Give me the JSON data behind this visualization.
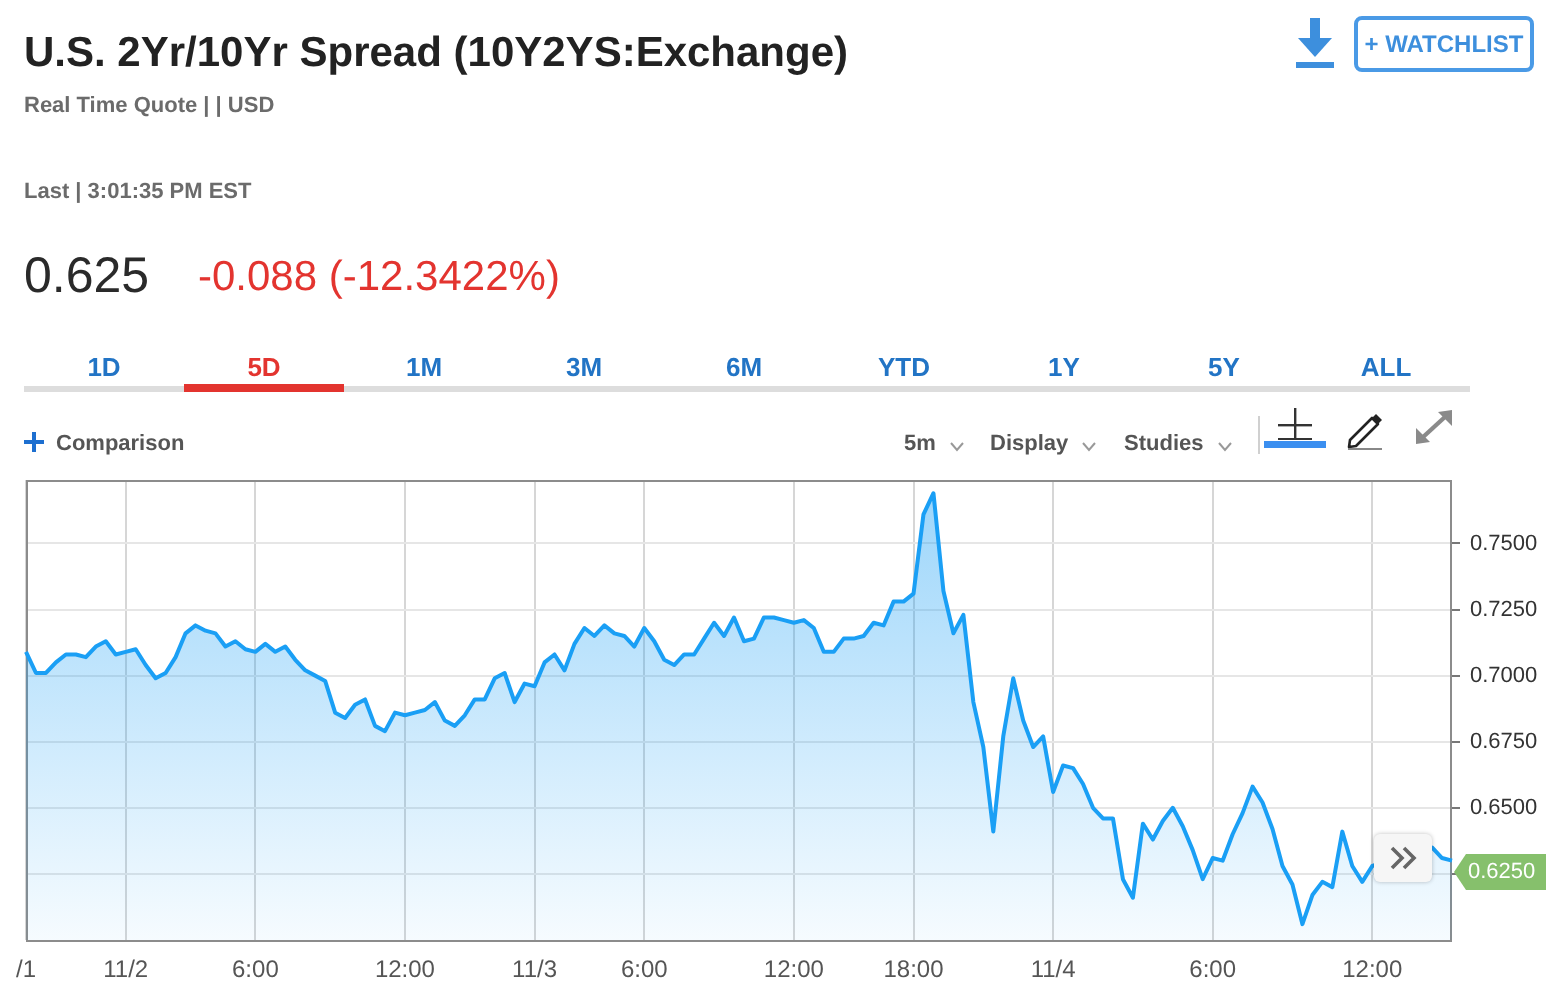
{
  "chart_data": {
    "type": "area",
    "title": "U.S. 2Yr/10Yr Spread (10Y2YS:Exchange)",
    "subtitle": "Real Time Quote | | USD",
    "annotations": [
      "Last | 3:01:35 PM EST",
      "0.625",
      "-0.088 (-12.3422%)",
      "1D",
      "5D",
      "1M",
      "3M",
      "6M",
      "YTD",
      "1Y",
      "5Y",
      "ALL",
      "+ WATCHLIST",
      "Comparison",
      "5m",
      "Display",
      "Studies",
      "0.6250"
    ],
    "categories": [
      "/1",
      null,
      null,
      null,
      null,
      null,
      null,
      null,
      null,
      null,
      "11/2",
      null,
      null,
      null,
      null,
      null,
      null,
      null,
      null,
      null,
      null,
      null,
      null,
      "6:00",
      null,
      null,
      null,
      null,
      null,
      null,
      null,
      null,
      null,
      null,
      null,
      null,
      null,
      null,
      "12:00",
      null,
      null,
      null,
      null,
      null,
      null,
      null,
      null,
      null,
      null,
      null,
      null,
      "11/3",
      null,
      null,
      null,
      null,
      null,
      null,
      null,
      null,
      null,
      null,
      "6:00",
      null,
      null,
      null,
      null,
      null,
      null,
      null,
      null,
      null,
      null,
      null,
      null,
      null,
      null,
      "12:00",
      null,
      null,
      null,
      null,
      null,
      null,
      null,
      null,
      null,
      null,
      null,
      "18:00",
      null,
      null,
      null,
      null,
      null,
      null,
      null,
      null,
      null,
      null,
      null,
      null,
      null,
      "11/4",
      null,
      null,
      null,
      null,
      null,
      null,
      null,
      null,
      null,
      null,
      null,
      null,
      null,
      null,
      null,
      "6:00",
      null,
      null,
      null,
      null,
      null,
      null,
      null,
      null,
      null,
      null,
      null,
      null,
      null,
      null,
      null,
      "12:00",
      null,
      null,
      null,
      null,
      null,
      null,
      null,
      null
    ],
    "values": [
      0.709,
      0.701,
      0.701,
      0.705,
      0.708,
      0.708,
      0.707,
      0.711,
      0.713,
      0.708,
      0.709,
      0.71,
      0.704,
      0.699,
      0.701,
      0.707,
      0.716,
      0.719,
      0.717,
      0.716,
      0.711,
      0.713,
      0.71,
      0.709,
      0.712,
      0.709,
      0.711,
      0.706,
      0.702,
      0.7,
      0.698,
      0.686,
      0.684,
      0.689,
      0.691,
      0.681,
      0.679,
      0.686,
      0.685,
      0.686,
      0.687,
      0.69,
      0.683,
      0.681,
      0.685,
      0.691,
      0.691,
      0.699,
      0.701,
      0.69,
      0.697,
      0.696,
      0.705,
      0.708,
      0.702,
      0.712,
      0.718,
      0.715,
      0.719,
      0.716,
      0.715,
      0.711,
      0.718,
      0.713,
      0.706,
      0.704,
      0.708,
      0.708,
      0.714,
      0.72,
      0.715,
      0.722,
      0.713,
      0.714,
      0.722,
      0.722,
      0.721,
      0.72,
      0.721,
      0.718,
      0.709,
      0.709,
      0.714,
      0.714,
      0.715,
      0.72,
      0.719,
      0.728,
      0.728,
      0.731,
      0.761,
      0.769,
      0.732,
      0.716,
      0.723,
      0.69,
      0.673,
      0.641,
      0.677,
      0.699,
      0.683,
      0.673,
      0.677,
      0.656,
      0.666,
      0.665,
      0.659,
      0.65,
      0.646,
      0.646,
      0.623,
      0.616,
      0.644,
      0.638,
      0.645,
      0.65,
      0.643,
      0.634,
      0.623,
      0.631,
      0.63,
      0.64,
      0.648,
      0.658,
      0.652,
      0.642,
      0.628,
      0.621,
      0.606,
      0.617,
      0.622,
      0.62,
      0.641,
      0.628,
      0.622,
      0.628,
      null,
      null,
      null,
      null,
      null,
      0.635,
      0.631,
      0.63
    ],
    "color": "#1a9ff5",
    "ylim": [
      0.6,
      0.774
    ],
    "yticks": [
      {
        "value": 0.625,
        "label": null
      },
      {
        "value": 0.65,
        "label": "0.6500"
      },
      {
        "value": 0.675,
        "label": "0.6750"
      },
      {
        "value": 0.7,
        "label": "0.7000"
      },
      {
        "value": 0.725,
        "label": "0.7250"
      },
      {
        "value": 0.75,
        "label": "0.7500"
      }
    ],
    "grid": true,
    "legend": false,
    "marker": "none"
  }
}
